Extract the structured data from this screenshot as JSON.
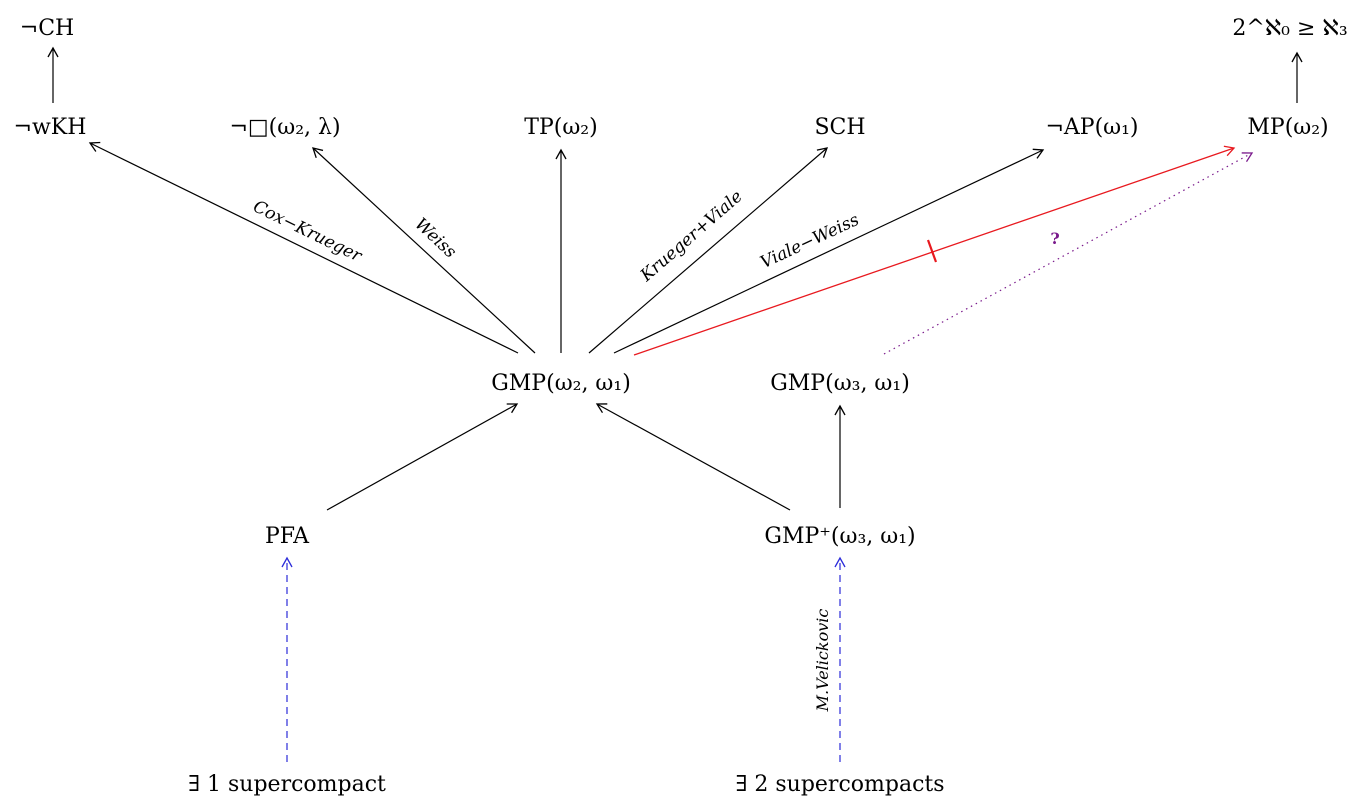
{
  "nodes": {
    "not_ch": "¬CH",
    "not_wkh": "¬wKH",
    "not_square": "¬□(ω₂, λ)",
    "tp": "TP(ω₂)",
    "sch": "SCH",
    "not_ap": "¬AP(ω₁)",
    "mp": "MP(ω₂)",
    "continuum": "2^ℵ₀ ≥ ℵ₃",
    "gmp_21": "GMP(ω₂, ω₁)",
    "gmp_31": "GMP(ω₃, ω₁)",
    "pfa": "PFA",
    "gmp_plus_31": "GMP⁺(ω₃, ω₁)",
    "one_supercompact": "∃ 1 supercompact",
    "two_supercompacts": "∃ 2 supercompacts"
  },
  "edge_labels": {
    "cox_krueger": "Cox−Krueger",
    "weiss": "Weiss",
    "krueger_viale": "Krueger+Viale",
    "viale_weiss": "Viale−Weiss",
    "velickovic": "M.Velickovic",
    "question": "?"
  },
  "colors": {
    "implication": "#000000",
    "non_implication": "#e8191f",
    "consistency": "#2b2bd9",
    "open_question": "#7a1a8c"
  }
}
